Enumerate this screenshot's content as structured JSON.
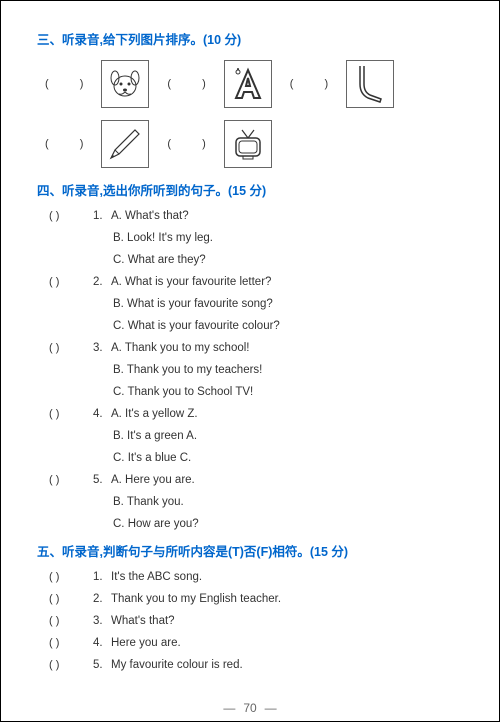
{
  "colors": {
    "heading": "#0066cc",
    "text": "#333333",
    "border": "#666666",
    "page_bg": "#ffffff"
  },
  "section3": {
    "title": "三、听录音,给下列图片排序。(10 分)",
    "items": [
      {
        "paren": "(  )"
      },
      {
        "paren": "(  )"
      },
      {
        "paren": "(  )"
      },
      {
        "paren": "(  )"
      },
      {
        "paren": "(  )"
      }
    ]
  },
  "section4": {
    "title": "四、听录音,选出你所听到的句子。(15 分)",
    "questions": [
      {
        "paren": "(      )",
        "num": "1.",
        "opts": [
          "A. What's that?",
          "B. Look! It's my leg.",
          "C. What are they?"
        ]
      },
      {
        "paren": "(      )",
        "num": "2.",
        "opts": [
          "A. What is your favourite letter?",
          "B. What is your favourite song?",
          "C. What is your favourite colour?"
        ]
      },
      {
        "paren": "(      )",
        "num": "3.",
        "opts": [
          "A. Thank you to my school!",
          "B. Thank you to my teachers!",
          "C. Thank you to School TV!"
        ]
      },
      {
        "paren": "(      )",
        "num": "4.",
        "opts": [
          "A. It's a yellow Z.",
          "B. It's a green A.",
          "C. It's a blue C."
        ]
      },
      {
        "paren": "(      )",
        "num": "5.",
        "opts": [
          "A. Here you are.",
          "B. Thank you.",
          "C. How are you?"
        ]
      }
    ]
  },
  "section5": {
    "title": "五、听录音,判断句子与所听内容是(T)否(F)相符。(15 分)",
    "questions": [
      {
        "paren": "(      )",
        "num": "1.",
        "text": "It's the ABC song."
      },
      {
        "paren": "(      )",
        "num": "2.",
        "text": "Thank you to my English teacher."
      },
      {
        "paren": "(      )",
        "num": "3.",
        "text": "What's that?"
      },
      {
        "paren": "(      )",
        "num": "4.",
        "text": "Here you are."
      },
      {
        "paren": "(      )",
        "num": "5.",
        "text": "My favourite colour is red."
      }
    ]
  },
  "page_number": "70"
}
